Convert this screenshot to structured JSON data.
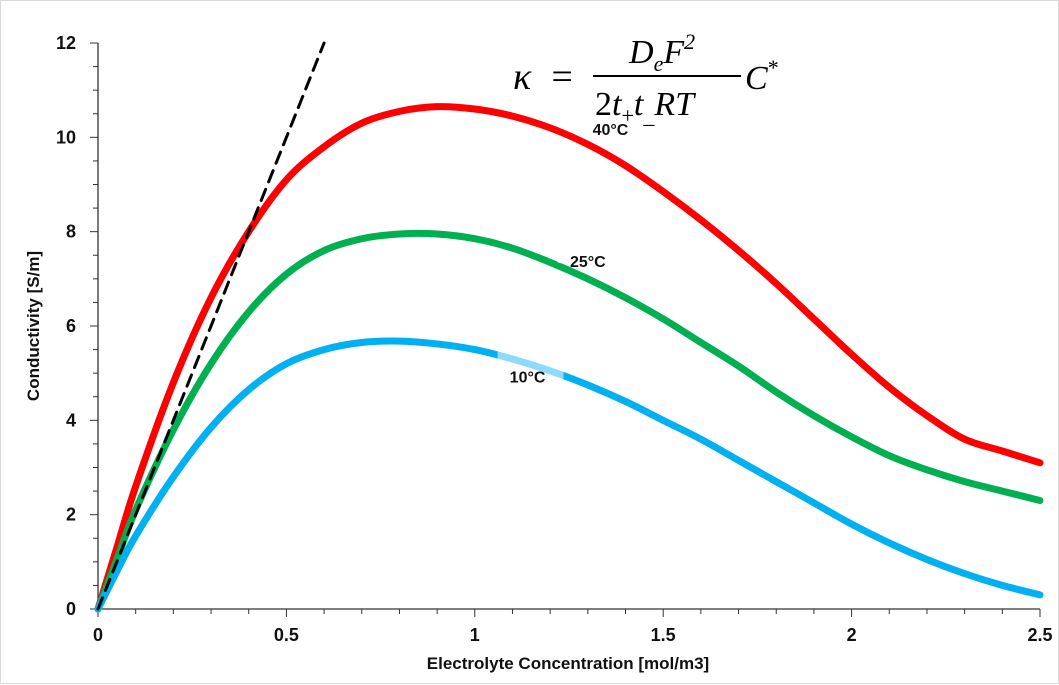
{
  "chart_data": {
    "type": "line",
    "xlabel": "Electrolyte Concentration [mol/m3]",
    "ylabel": "Conductivity [S/m]",
    "xlim": [
      0,
      2.5
    ],
    "ylim": [
      0,
      12
    ],
    "xticks": [
      "0",
      "0.5",
      "1",
      "1.5",
      "2",
      "2.5"
    ],
    "yticks": [
      "0",
      "2",
      "4",
      "6",
      "8",
      "10",
      "12"
    ],
    "grid": false,
    "equation": "κ = D_e F² / (2 t₊ t₋ R T) C*",
    "series": [
      {
        "name": "40°C",
        "color": "#ff0000",
        "x": [
          0,
          0.05,
          0.1,
          0.2,
          0.3,
          0.4,
          0.5,
          0.6,
          0.7,
          0.8,
          0.9,
          1.0,
          1.1,
          1.2,
          1.3,
          1.4,
          1.5,
          1.6,
          1.7,
          1.8,
          1.9,
          2.0,
          2.1,
          2.2,
          2.3,
          2.4,
          2.5
        ],
        "y": [
          0,
          1.3,
          2.6,
          4.8,
          6.6,
          8.0,
          9.1,
          9.8,
          10.3,
          10.55,
          10.65,
          10.6,
          10.45,
          10.2,
          9.85,
          9.4,
          8.85,
          8.25,
          7.6,
          6.9,
          6.15,
          5.4,
          4.7,
          4.1,
          3.6,
          3.35,
          3.1
        ]
      },
      {
        "name": "25°C",
        "color": "#00b050",
        "x": [
          0,
          0.05,
          0.1,
          0.2,
          0.3,
          0.4,
          0.5,
          0.6,
          0.7,
          0.8,
          0.9,
          1.0,
          1.1,
          1.2,
          1.3,
          1.4,
          1.5,
          1.6,
          1.7,
          1.8,
          1.9,
          2.0,
          2.1,
          2.2,
          2.3,
          2.4,
          2.5
        ],
        "y": [
          0,
          1.05,
          2.1,
          3.8,
          5.2,
          6.3,
          7.1,
          7.6,
          7.85,
          7.95,
          7.95,
          7.85,
          7.65,
          7.35,
          7.0,
          6.6,
          6.15,
          5.65,
          5.15,
          4.6,
          4.1,
          3.65,
          3.25,
          2.95,
          2.7,
          2.5,
          2.3
        ]
      },
      {
        "name": "10°C",
        "color": "#00b0f0",
        "x": [
          0,
          0.05,
          0.1,
          0.2,
          0.3,
          0.4,
          0.5,
          0.6,
          0.7,
          0.8,
          0.9,
          1.0,
          1.1,
          1.2,
          1.3,
          1.4,
          1.5,
          1.6,
          1.7,
          1.8,
          1.9,
          2.0,
          2.1,
          2.2,
          2.3,
          2.4,
          2.5
        ],
        "y": [
          0,
          0.8,
          1.55,
          2.8,
          3.85,
          4.65,
          5.2,
          5.5,
          5.65,
          5.68,
          5.62,
          5.5,
          5.3,
          5.05,
          4.75,
          4.4,
          4.0,
          3.6,
          3.15,
          2.7,
          2.25,
          1.8,
          1.4,
          1.05,
          0.75,
          0.5,
          0.3
        ]
      },
      {
        "name": "",
        "color": "#000000",
        "style": "dashed",
        "x": [
          0,
          0.6
        ],
        "y": [
          0,
          12
        ]
      }
    ],
    "annotations": [
      "40°C",
      "25°C",
      "10°C"
    ]
  }
}
